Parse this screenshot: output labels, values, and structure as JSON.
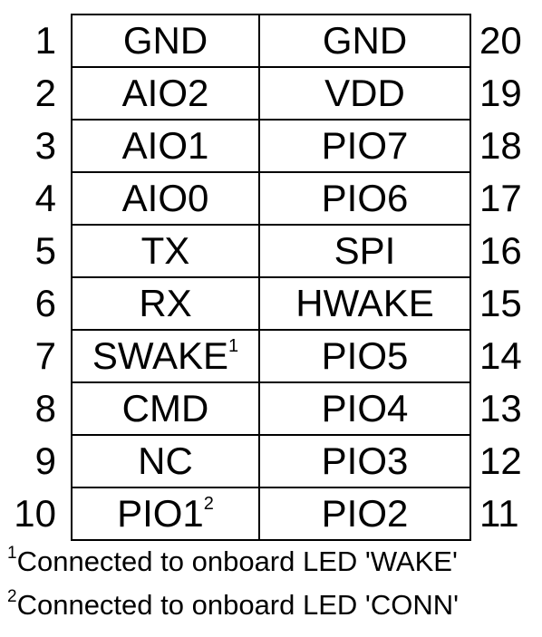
{
  "pinout": {
    "left_numbers": [
      "1",
      "2",
      "3",
      "4",
      "5",
      "6",
      "7",
      "8",
      "9",
      "10"
    ],
    "right_numbers": [
      "20",
      "19",
      "18",
      "17",
      "16",
      "15",
      "14",
      "13",
      "12",
      "11"
    ],
    "rows": [
      {
        "left": "GND",
        "left_sup": "",
        "right": "GND"
      },
      {
        "left": "AIO2",
        "left_sup": "",
        "right": "VDD"
      },
      {
        "left": "AIO1",
        "left_sup": "",
        "right": "PIO7"
      },
      {
        "left": "AIO0",
        "left_sup": "",
        "right": "PIO6"
      },
      {
        "left": "TX",
        "left_sup": "",
        "right": "SPI"
      },
      {
        "left": "RX",
        "left_sup": "",
        "right": "HWAKE"
      },
      {
        "left": "SWAKE",
        "left_sup": "1",
        "right": "PIO5"
      },
      {
        "left": "CMD",
        "left_sup": "",
        "right": "PIO4"
      },
      {
        "left": "NC",
        "left_sup": "",
        "right": "PIO3"
      },
      {
        "left": "PIO1",
        "left_sup": "2",
        "right": "PIO2"
      }
    ]
  },
  "footnotes": [
    {
      "mark": "1",
      "text": "Connected to onboard LED 'WAKE'"
    },
    {
      "mark": "2",
      "text": "Connected to onboard LED 'CONN'"
    }
  ],
  "colors": {
    "line": "#000000",
    "text": "#000000",
    "background": "#ffffff"
  }
}
